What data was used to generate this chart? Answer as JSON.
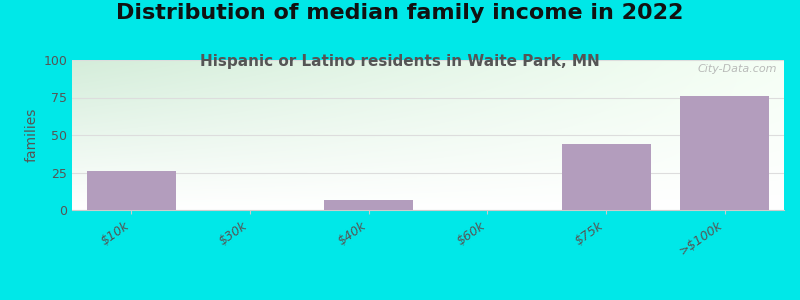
{
  "title": "Distribution of median family income in 2022",
  "subtitle": "Hispanic or Latino residents in Waite Park, MN",
  "categories": [
    "$10k",
    "$30k",
    "$40k",
    "$60k",
    "$75k",
    ">$100k"
  ],
  "values": [
    26,
    0,
    7,
    0,
    44,
    76
  ],
  "bar_color": "#b39dbd",
  "ylabel": "families",
  "ylim": [
    0,
    100
  ],
  "yticks": [
    0,
    25,
    50,
    75,
    100
  ],
  "background_outer": "#00e8e8",
  "background_plot_topleft": "#d4edda",
  "background_plot_topright": "#f8fff8",
  "background_plot_bottom": "#ffffff",
  "title_fontsize": 16,
  "subtitle_fontsize": 11,
  "title_color": "#111111",
  "subtitle_color": "#555555",
  "watermark": "City-Data.com",
  "tick_color": "#555555",
  "grid_color": "#dddddd",
  "spine_color": "#cccccc"
}
